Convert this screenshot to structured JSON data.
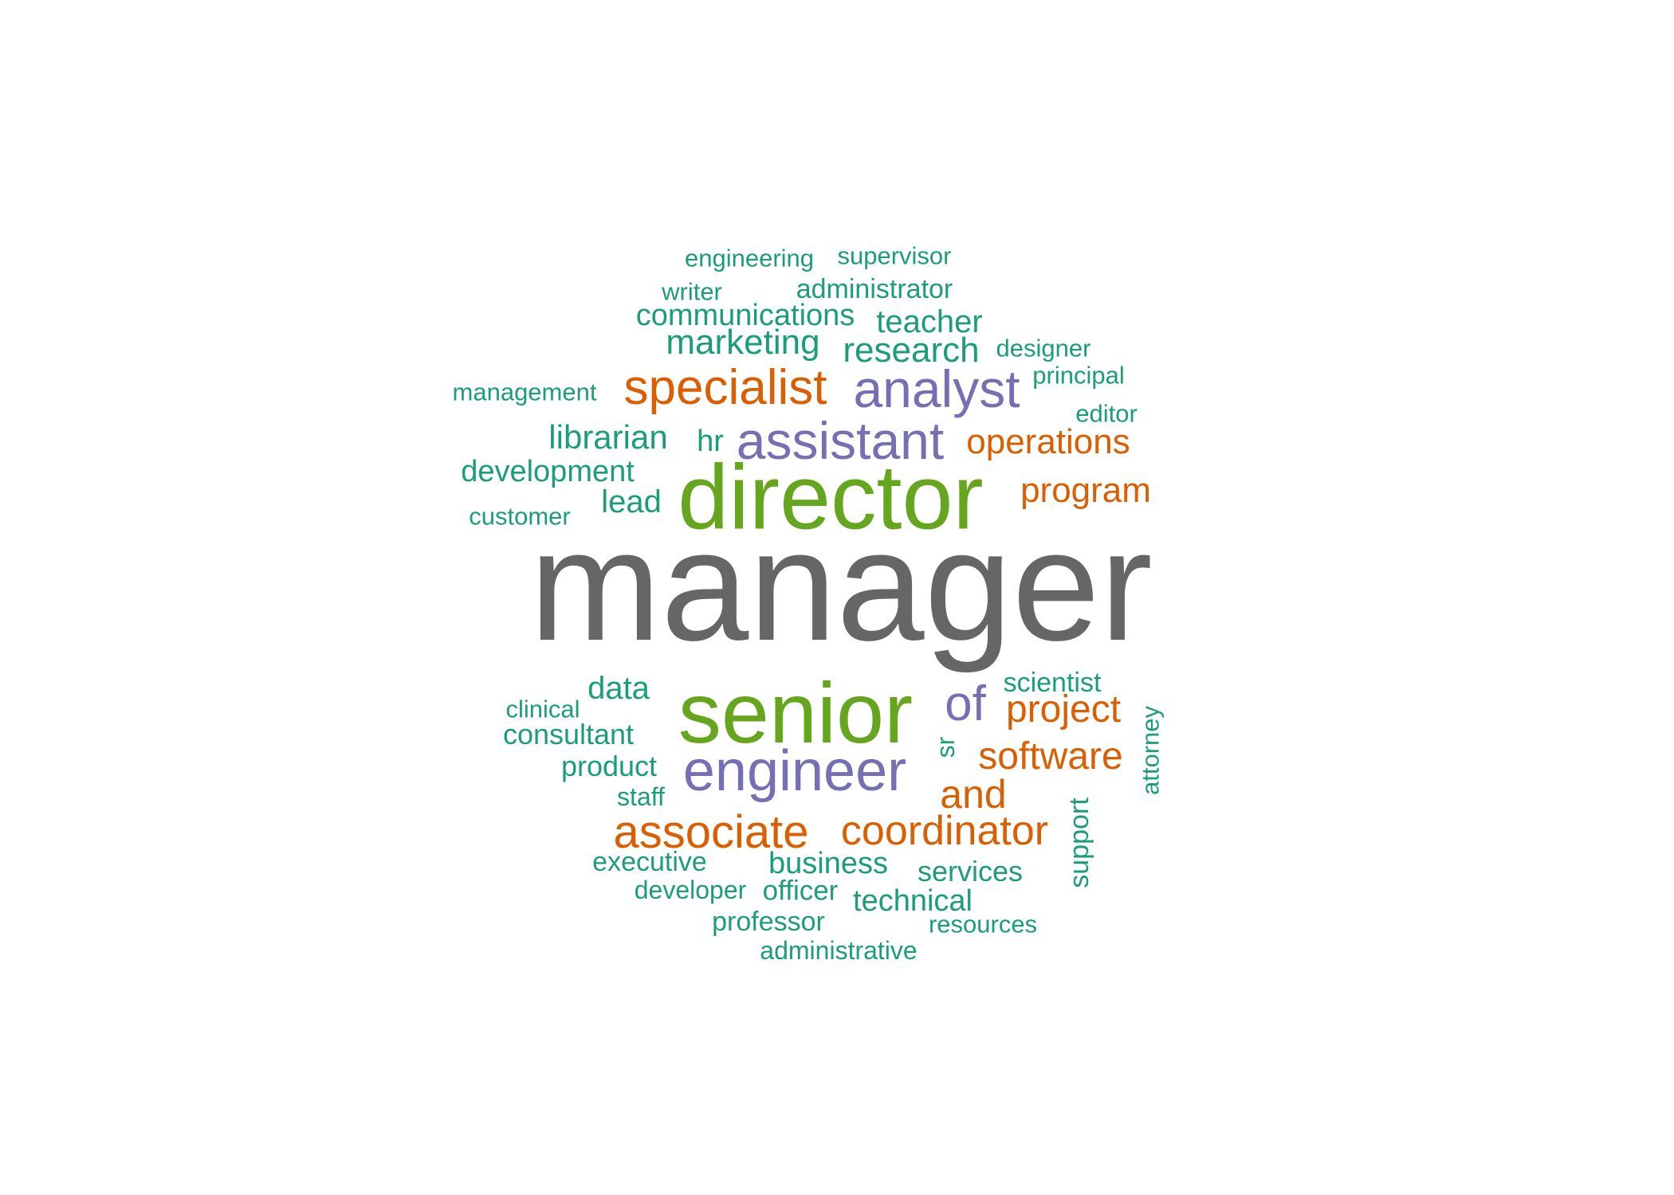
{
  "colors": {
    "gray": "#666666",
    "green": "#66a61e",
    "purple": "#7570b3",
    "orange": "#d95f02",
    "teal": "#1b9e77"
  },
  "words": [
    {
      "text": "manager",
      "color": "gray",
      "orientation": "horizontal"
    },
    {
      "text": "director",
      "color": "green",
      "orientation": "horizontal"
    },
    {
      "text": "senior",
      "color": "green",
      "orientation": "horizontal"
    },
    {
      "text": "engineer",
      "color": "purple",
      "orientation": "horizontal"
    },
    {
      "text": "assistant",
      "color": "purple",
      "orientation": "horizontal"
    },
    {
      "text": "analyst",
      "color": "purple",
      "orientation": "horizontal"
    },
    {
      "text": "of",
      "color": "purple",
      "orientation": "horizontal"
    },
    {
      "text": "specialist",
      "color": "orange",
      "orientation": "horizontal"
    },
    {
      "text": "associate",
      "color": "orange",
      "orientation": "horizontal"
    },
    {
      "text": "coordinator",
      "color": "orange",
      "orientation": "horizontal"
    },
    {
      "text": "operations",
      "color": "orange",
      "orientation": "horizontal"
    },
    {
      "text": "program",
      "color": "orange",
      "orientation": "horizontal"
    },
    {
      "text": "project",
      "color": "orange",
      "orientation": "horizontal"
    },
    {
      "text": "software",
      "color": "orange",
      "orientation": "horizontal"
    },
    {
      "text": "and",
      "color": "orange",
      "orientation": "horizontal"
    },
    {
      "text": "engineering",
      "color": "teal",
      "orientation": "horizontal"
    },
    {
      "text": "supervisor",
      "color": "teal",
      "orientation": "horizontal"
    },
    {
      "text": "writer",
      "color": "teal",
      "orientation": "horizontal"
    },
    {
      "text": "administrator",
      "color": "teal",
      "orientation": "horizontal"
    },
    {
      "text": "communications",
      "color": "teal",
      "orientation": "horizontal"
    },
    {
      "text": "teacher",
      "color": "teal",
      "orientation": "horizontal"
    },
    {
      "text": "marketing",
      "color": "teal",
      "orientation": "horizontal"
    },
    {
      "text": "research",
      "color": "teal",
      "orientation": "horizontal"
    },
    {
      "text": "designer",
      "color": "teal",
      "orientation": "horizontal"
    },
    {
      "text": "principal",
      "color": "teal",
      "orientation": "horizontal"
    },
    {
      "text": "management",
      "color": "teal",
      "orientation": "horizontal"
    },
    {
      "text": "editor",
      "color": "teal",
      "orientation": "horizontal"
    },
    {
      "text": "librarian",
      "color": "teal",
      "orientation": "horizontal"
    },
    {
      "text": "hr",
      "color": "teal",
      "orientation": "horizontal"
    },
    {
      "text": "development",
      "color": "teal",
      "orientation": "horizontal"
    },
    {
      "text": "lead",
      "color": "teal",
      "orientation": "horizontal"
    },
    {
      "text": "customer",
      "color": "teal",
      "orientation": "horizontal"
    },
    {
      "text": "data",
      "color": "teal",
      "orientation": "horizontal"
    },
    {
      "text": "scientist",
      "color": "teal",
      "orientation": "horizontal"
    },
    {
      "text": "clinical",
      "color": "teal",
      "orientation": "horizontal"
    },
    {
      "text": "consultant",
      "color": "teal",
      "orientation": "horizontal"
    },
    {
      "text": "product",
      "color": "teal",
      "orientation": "horizontal"
    },
    {
      "text": "staff",
      "color": "teal",
      "orientation": "horizontal"
    },
    {
      "text": "sr",
      "color": "teal",
      "orientation": "vertical"
    },
    {
      "text": "attorney",
      "color": "teal",
      "orientation": "vertical"
    },
    {
      "text": "support",
      "color": "teal",
      "orientation": "vertical"
    },
    {
      "text": "executive",
      "color": "teal",
      "orientation": "horizontal"
    },
    {
      "text": "business",
      "color": "teal",
      "orientation": "horizontal"
    },
    {
      "text": "services",
      "color": "teal",
      "orientation": "horizontal"
    },
    {
      "text": "developer",
      "color": "teal",
      "orientation": "horizontal"
    },
    {
      "text": "officer",
      "color": "teal",
      "orientation": "horizontal"
    },
    {
      "text": "technical",
      "color": "teal",
      "orientation": "horizontal"
    },
    {
      "text": "professor",
      "color": "teal",
      "orientation": "horizontal"
    },
    {
      "text": "resources",
      "color": "teal",
      "orientation": "horizontal"
    },
    {
      "text": "administrative",
      "color": "teal",
      "orientation": "horizontal"
    }
  ]
}
